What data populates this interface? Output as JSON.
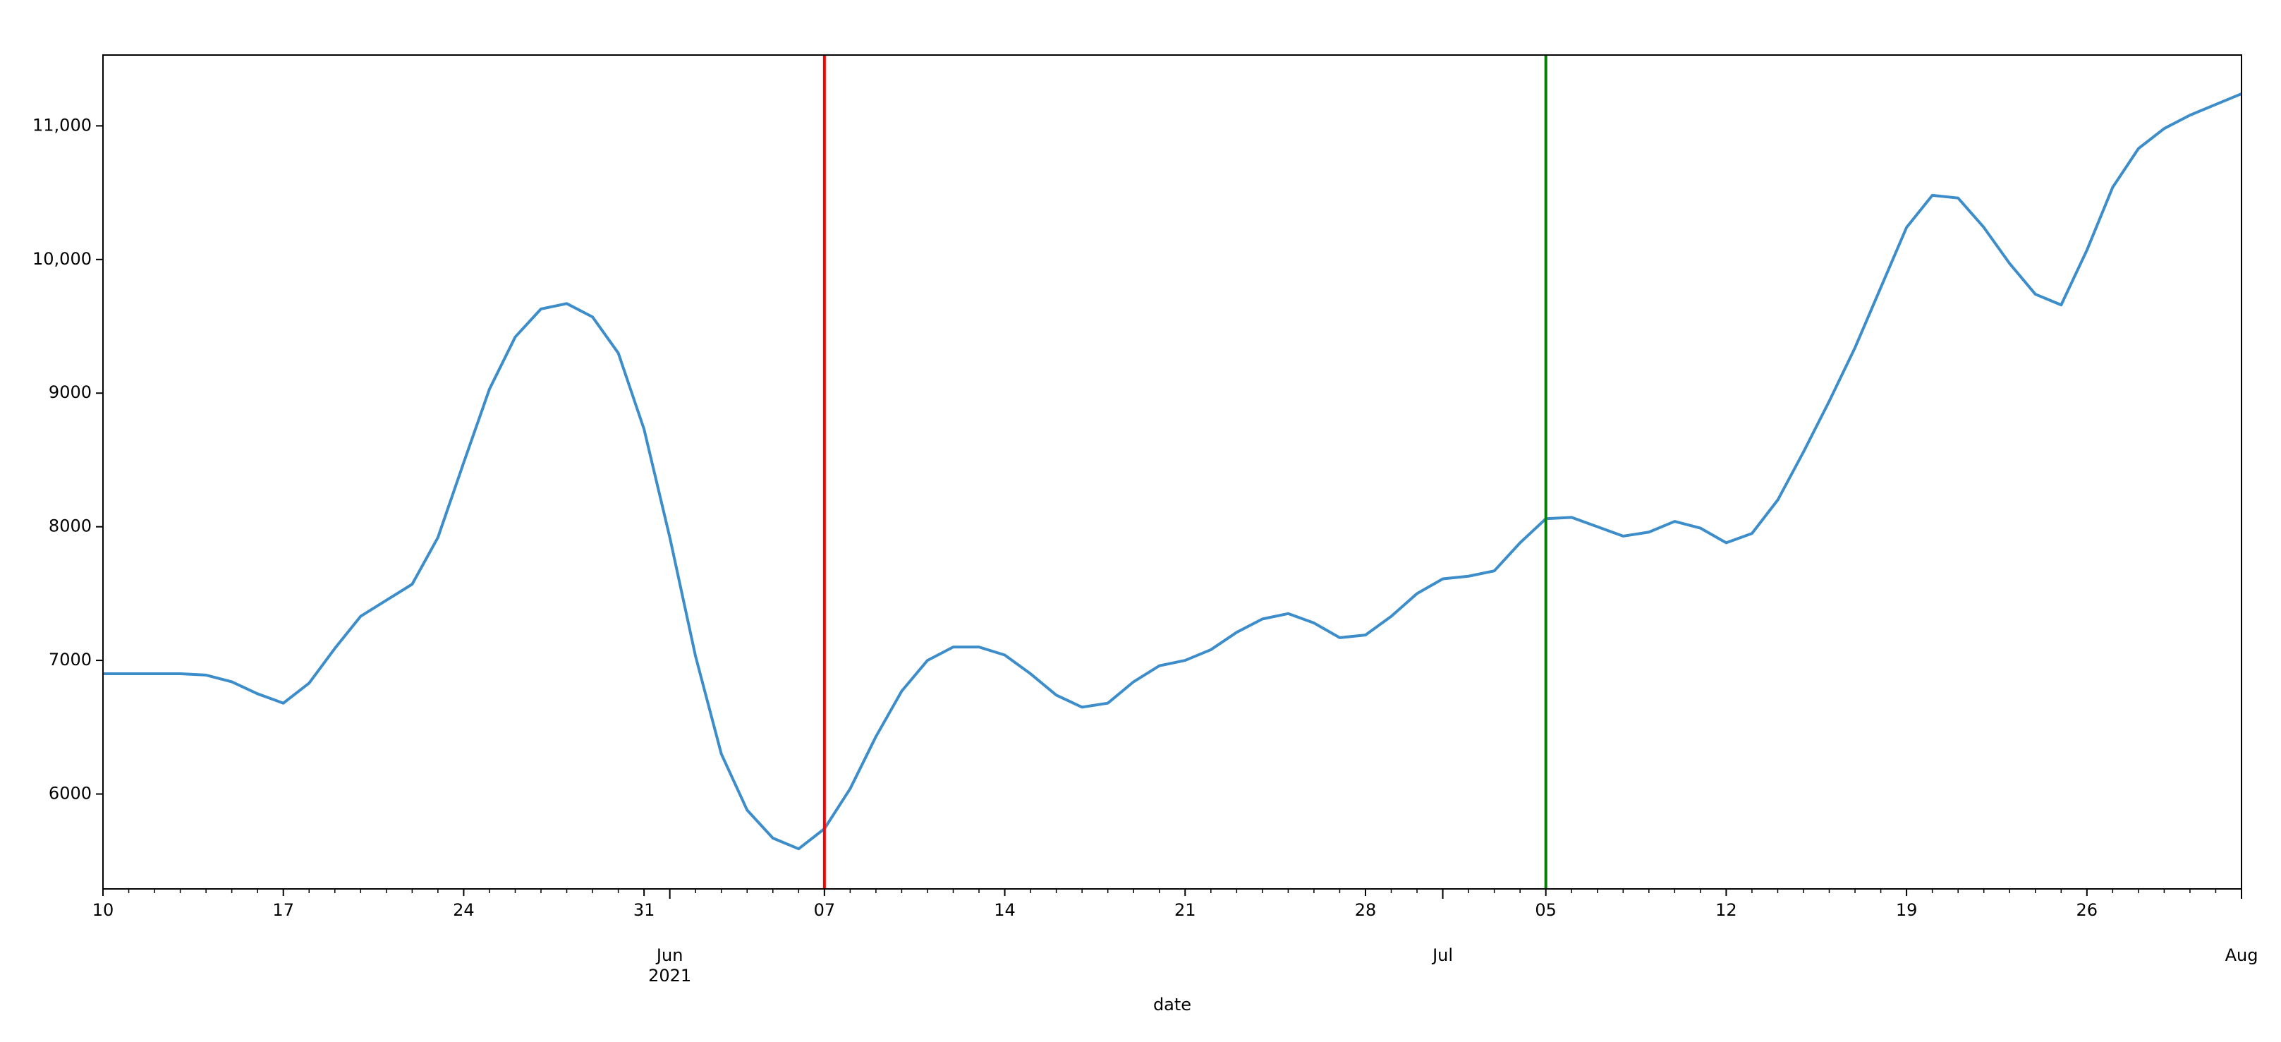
{
  "chart_data": {
    "type": "line",
    "xlabel": "date",
    "x": [
      "2021-05-10",
      "2021-05-11",
      "2021-05-12",
      "2021-05-13",
      "2021-05-14",
      "2021-05-15",
      "2021-05-16",
      "2021-05-17",
      "2021-05-18",
      "2021-05-19",
      "2021-05-20",
      "2021-05-21",
      "2021-05-22",
      "2021-05-23",
      "2021-05-24",
      "2021-05-25",
      "2021-05-26",
      "2021-05-27",
      "2021-05-28",
      "2021-05-29",
      "2021-05-30",
      "2021-05-31",
      "2021-06-01",
      "2021-06-02",
      "2021-06-03",
      "2021-06-04",
      "2021-06-05",
      "2021-06-06",
      "2021-06-07",
      "2021-06-08",
      "2021-06-09",
      "2021-06-10",
      "2021-06-11",
      "2021-06-12",
      "2021-06-13",
      "2021-06-14",
      "2021-06-15",
      "2021-06-16",
      "2021-06-17",
      "2021-06-18",
      "2021-06-19",
      "2021-06-20",
      "2021-06-21",
      "2021-06-22",
      "2021-06-23",
      "2021-06-24",
      "2021-06-25",
      "2021-06-26",
      "2021-06-27",
      "2021-06-28",
      "2021-06-29",
      "2021-06-30",
      "2021-07-01",
      "2021-07-02",
      "2021-07-03",
      "2021-07-04",
      "2021-07-05",
      "2021-07-06",
      "2021-07-07",
      "2021-07-08",
      "2021-07-09",
      "2021-07-10",
      "2021-07-11",
      "2021-07-12",
      "2021-07-13",
      "2021-07-14",
      "2021-07-15",
      "2021-07-16",
      "2021-07-17",
      "2021-07-18",
      "2021-07-19",
      "2021-07-20",
      "2021-07-21",
      "2021-07-22",
      "2021-07-23",
      "2021-07-24",
      "2021-07-25",
      "2021-07-26",
      "2021-07-27",
      "2021-07-28",
      "2021-07-29",
      "2021-07-30",
      "2021-07-31",
      "2021-08-01"
    ],
    "series": [
      {
        "color": "#3c8dc9",
        "values": [
          6900,
          6900,
          6900,
          6900,
          6890,
          6840,
          6750,
          6680,
          6830,
          7090,
          7330,
          7450,
          7570,
          7920,
          8480,
          9030,
          9420,
          9630,
          9670,
          9570,
          9300,
          8730,
          7920,
          7030,
          6300,
          5880,
          5670,
          5590,
          5740,
          6040,
          6430,
          6770,
          7000,
          7100,
          7100,
          7040,
          6900,
          6740,
          6650,
          6680,
          6840,
          6960,
          7000,
          7080,
          7210,
          7310,
          7350,
          7280,
          7170,
          7190,
          7330,
          7500,
          7610,
          7630,
          7670,
          7880,
          8060,
          8070,
          8000,
          7930,
          7960,
          8040,
          7990,
          7880,
          7950,
          8200,
          8560,
          8940,
          9340,
          9790,
          10240,
          10480,
          10460,
          10240,
          9970,
          9740,
          9660,
          10070,
          10540,
          10830,
          10980,
          11080,
          11160,
          11240
        ]
      }
    ],
    "vlines": [
      {
        "x": "2021-06-07",
        "color": "#ff0000"
      },
      {
        "x": "2021-07-05",
        "color": "#008000"
      }
    ],
    "xlim": [
      "2021-05-10",
      "2021-08-01"
    ],
    "xticks": [
      {
        "value": "2021-05-10",
        "label": "10"
      },
      {
        "value": "2021-05-17",
        "label": "17"
      },
      {
        "value": "2021-05-24",
        "label": "24"
      },
      {
        "value": "2021-05-31",
        "label": "31"
      },
      {
        "value": "2021-06-01",
        "label": "Jun\n2021"
      },
      {
        "value": "2021-06-07",
        "label": "07"
      },
      {
        "value": "2021-06-14",
        "label": "14"
      },
      {
        "value": "2021-06-21",
        "label": "21"
      },
      {
        "value": "2021-06-28",
        "label": "28"
      },
      {
        "value": "2021-07-01",
        "label": "Jul"
      },
      {
        "value": "2021-07-05",
        "label": "05"
      },
      {
        "value": "2021-07-12",
        "label": "12"
      },
      {
        "value": "2021-07-19",
        "label": "19"
      },
      {
        "value": "2021-07-26",
        "label": "26"
      },
      {
        "value": "2021-08-01",
        "label": "Aug"
      }
    ],
    "ylim": [
      5290,
      11530
    ],
    "yticks": [
      6000,
      7000,
      8000,
      9000,
      {
        "value": 10000,
        "label": "10,000"
      },
      {
        "value": 11000,
        "label": "11,000"
      }
    ]
  }
}
